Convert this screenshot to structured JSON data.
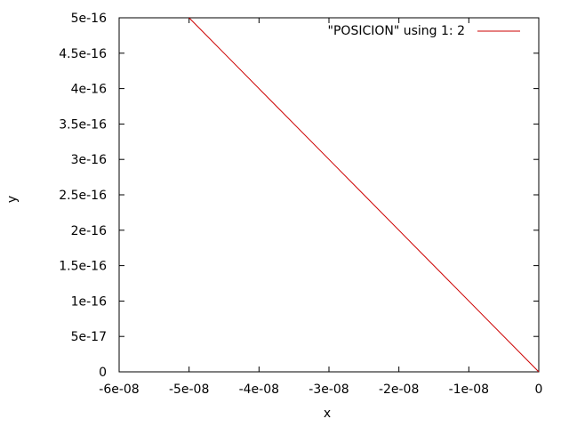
{
  "chart_data": {
    "type": "line",
    "title": "",
    "xlabel": "x",
    "ylabel": "y",
    "xlim": [
      -6e-08,
      0
    ],
    "ylim": [
      0,
      5e-16
    ],
    "x_ticks": [
      -6e-08,
      -5e-08,
      -4e-08,
      -3e-08,
      -2e-08,
      -1e-08,
      0
    ],
    "x_tick_labels": [
      "-6e-08",
      "-5e-08",
      "-4e-08",
      "-3e-08",
      "-2e-08",
      "-1e-08",
      "0"
    ],
    "y_ticks": [
      0,
      5e-17,
      1e-16,
      1.5e-16,
      2e-16,
      2.5e-16,
      3e-16,
      3.5e-16,
      4e-16,
      4.5e-16,
      5e-16
    ],
    "y_tick_labels": [
      "0",
      "5e-17",
      "1e-16",
      "1.5e-16",
      "2e-16",
      "2.5e-16",
      "3e-16",
      "3.5e-16",
      "4e-16",
      "4.5e-16",
      "5e-16"
    ],
    "grid": false,
    "legend_position": "top-right",
    "series": [
      {
        "name": "\"POSICION\" using   1:  2",
        "color": "#cc0000",
        "x": [
          -5e-08,
          -3.75e-08,
          -2.5e-08,
          -1.25e-08,
          0
        ],
        "y": [
          5e-16,
          3.75e-16,
          2.5e-16,
          1.25e-16,
          0
        ]
      }
    ]
  }
}
